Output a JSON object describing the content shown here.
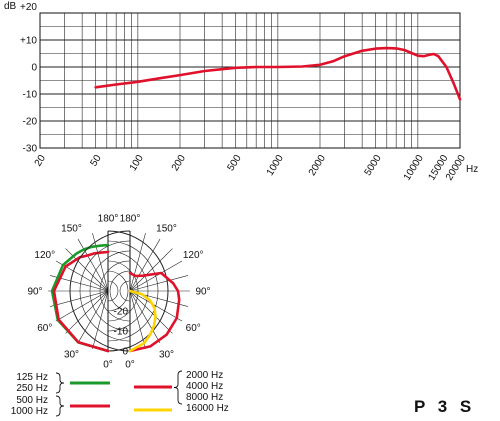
{
  "chart_data": [
    {
      "type": "line",
      "title": "",
      "xlabel": "Hz",
      "ylabel": "dB",
      "xscale": "log",
      "xlim": [
        20,
        20000
      ],
      "ylim": [
        -30,
        20
      ],
      "x_ticks": [
        "20",
        "50",
        "100",
        "200",
        "500",
        "1000",
        "2000",
        "5000",
        "10000",
        "15000",
        "20000"
      ],
      "y_ticks": [
        "+20",
        "+10",
        "0",
        "-10",
        "-20",
        "-30"
      ],
      "grid": true,
      "series": [
        {
          "color": "#e0112b",
          "x": [
            50,
            70,
            100,
            150,
            200,
            300,
            400,
            500,
            700,
            1000,
            1500,
            2000,
            2500,
            3000,
            4000,
            5000,
            6000,
            7000,
            8000,
            9000,
            10000,
            11000,
            12000,
            13000,
            14000,
            16000,
            18000,
            20000
          ],
          "y": [
            -7.5,
            -6.5,
            -5.5,
            -4,
            -3,
            -1.5,
            -0.8,
            -0.3,
            0,
            0,
            0.2,
            0.8,
            2.2,
            4,
            6,
            6.8,
            7,
            6.9,
            6.3,
            5.2,
            4.2,
            4,
            4.5,
            4.8,
            4,
            0,
            -6,
            -12
          ]
        }
      ]
    },
    {
      "type": "polar",
      "angle_ticks": [
        "0°",
        "30°",
        "60°",
        "90°",
        "120°",
        "150°",
        "180°"
      ],
      "r_ticks": [
        "0",
        "-10",
        "-20"
      ],
      "rlim_db": [
        -30,
        0
      ],
      "grid": true,
      "left_half": [
        {
          "color": "#1a9a2a",
          "legend": "125 Hz\n250 Hz",
          "angles": [
            0,
            30,
            60,
            90,
            120,
            140,
            150,
            160,
            170,
            180
          ],
          "db": [
            0,
            -0.3,
            -1,
            -2,
            -4,
            -5.5,
            -6,
            -6.5,
            -7,
            -7
          ]
        },
        {
          "color": "#e0112b",
          "legend": "500 Hz\n1000 Hz",
          "angles": [
            0,
            30,
            60,
            90,
            120,
            140,
            150,
            160,
            170,
            180
          ],
          "db": [
            0,
            -0.4,
            -1.5,
            -3,
            -5.5,
            -8,
            -9.5,
            -10,
            -10.5,
            -10.5
          ]
        }
      ],
      "right_half": [
        {
          "color": "#e0112b",
          "legend": "2000 Hz\n4000 Hz\n8000 Hz",
          "angles": [
            0,
            20,
            40,
            60,
            80,
            90,
            100,
            120,
            140,
            160,
            180
          ],
          "db": [
            0,
            -0.5,
            -1.5,
            -3,
            -5,
            -6,
            -8,
            -12,
            -20,
            -22,
            -21
          ]
        },
        {
          "color": "#ffd400",
          "legend": "16000 Hz",
          "angles": [
            0,
            15,
            25,
            35,
            45,
            55,
            65,
            75,
            90
          ],
          "db": [
            0,
            -3,
            -6,
            -9,
            -12,
            -15,
            -19,
            -24,
            -30
          ]
        }
      ]
    }
  ],
  "legend": {
    "left_top": "125 Hz\n250 Hz",
    "left_bottom": "500 Hz\n1000 Hz",
    "right_top": "2000 Hz\n4000 Hz\n8000 Hz",
    "right_bottom": "16000 Hz"
  },
  "model_name": "P 3 S"
}
